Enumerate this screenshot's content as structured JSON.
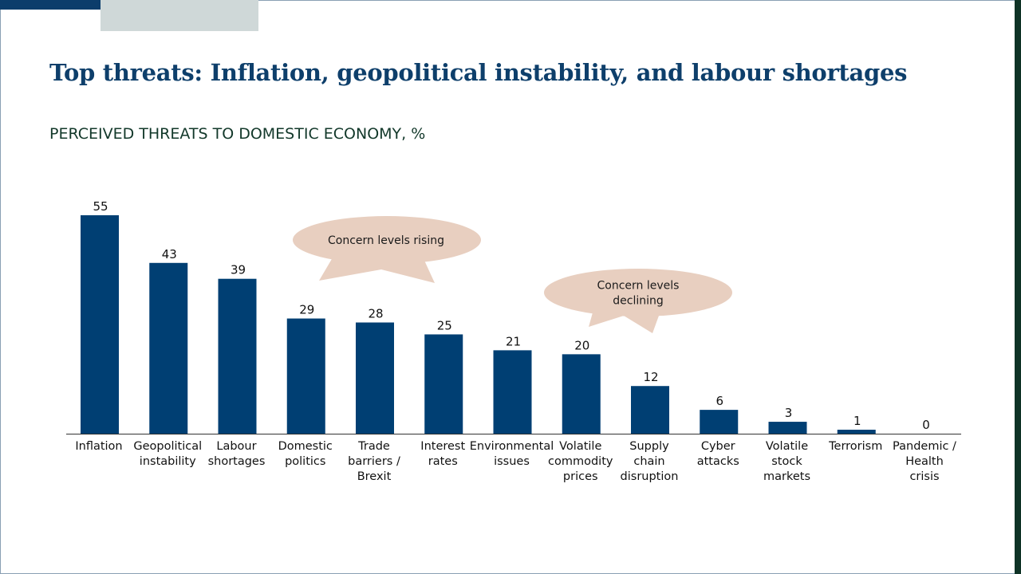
{
  "slide": {
    "title": "Top threats: Inflation, geopolitical instability, and labour shortages",
    "subtitle": "PERCEIVED THREATS TO DOMESTIC ECONOMY, %"
  },
  "colors": {
    "bar": "#003f73",
    "bubble": "#e8cfc0",
    "accent_blue": "#0c3d6b",
    "accent_grey": "#cfd8d8",
    "right_bar": "#0f3326"
  },
  "callouts": [
    {
      "lines": [
        "Concern levels rising"
      ]
    },
    {
      "lines": [
        "Concern levels",
        "declining"
      ]
    }
  ],
  "chart_data": {
    "type": "bar",
    "title": "",
    "xlabel": "",
    "ylabel": "",
    "ylim": [
      0,
      55
    ],
    "grid": false,
    "categories": [
      [
        "Inflation"
      ],
      [
        "Geopolitical",
        "instability"
      ],
      [
        "Labour",
        "shortages"
      ],
      [
        "Domestic",
        "politics"
      ],
      [
        "Trade",
        "barriers /",
        "Brexit"
      ],
      [
        "Interest",
        "rates"
      ],
      [
        "Environmental",
        "issues"
      ],
      [
        "Volatile",
        "commodity",
        "prices"
      ],
      [
        "Supply",
        "chain",
        "disruption"
      ],
      [
        "Cyber",
        "attacks"
      ],
      [
        "Volatile",
        "stock",
        "markets"
      ],
      [
        "Terrorism"
      ],
      [
        "Pandemic /",
        "Health",
        "crisis"
      ]
    ],
    "values": [
      55,
      43,
      39,
      29,
      28,
      25,
      21,
      20,
      12,
      6,
      3,
      1,
      0
    ]
  }
}
